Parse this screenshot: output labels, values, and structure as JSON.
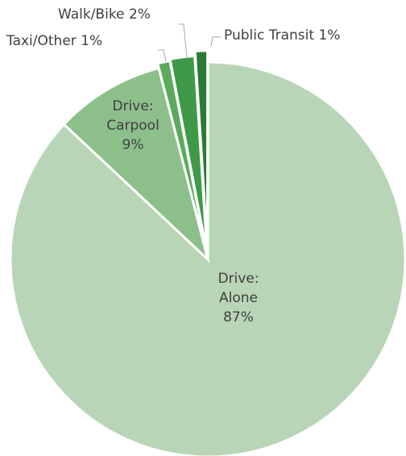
{
  "chart_data": {
    "type": "pie",
    "categories": [
      "Drive: Alone",
      "Drive: Carpool",
      "Taxi/Other",
      "Walk/Bike",
      "Public Transit"
    ],
    "values": [
      87,
      9,
      1,
      2,
      1
    ],
    "value_labels": [
      "87%",
      "9%",
      "1%",
      "2%",
      "1%"
    ],
    "colors": [
      "#b9d5b7",
      "#8dbf8b",
      "#5aaa5c",
      "#3f9a48",
      "#2b7a36"
    ]
  }
}
